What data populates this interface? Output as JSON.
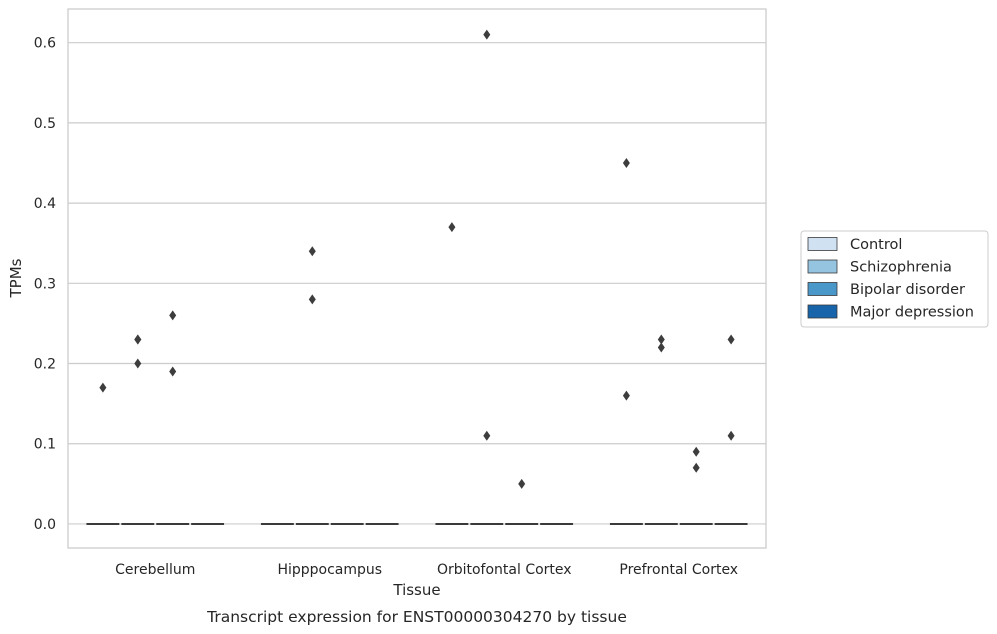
{
  "chart_data": {
    "type": "boxplot",
    "xlabel": "Tissue",
    "ylabel": "TPMs",
    "caption": "Transcript expression for ENST00000304270 by tissue",
    "categories": [
      "Cerebellum",
      "Hipppocampus",
      "Orbitofontal Cortex",
      "Prefrontal Cortex"
    ],
    "ylim": [
      -0.03,
      0.642
    ],
    "yticks": [
      "0.0",
      "0.1",
      "0.2",
      "0.3",
      "0.4",
      "0.5",
      "0.6"
    ],
    "grid": "horizontal",
    "legend_position": "right",
    "series": [
      {
        "name": "Control",
        "color": "#d0e1f2",
        "median": [
          0,
          0,
          0,
          0
        ],
        "outliers": [
          [
            0.17
          ],
          [],
          [
            0.37
          ],
          [
            0.45,
            0.16
          ]
        ]
      },
      {
        "name": "Schizophrenia",
        "color": "#94c4df",
        "median": [
          0,
          0,
          0,
          0
        ],
        "outliers": [
          [
            0.23,
            0.23,
            0.2
          ],
          [
            0.34,
            0.28
          ],
          [
            0.61,
            0.11
          ],
          [
            0.23,
            0.22
          ]
        ]
      },
      {
        "name": "Bipolar disorder",
        "color": "#4a98c9",
        "median": [
          0,
          0,
          0,
          0
        ],
        "outliers": [
          [
            0.26,
            0.19
          ],
          [],
          [
            0.05
          ],
          [
            0.09,
            0.07
          ]
        ]
      },
      {
        "name": "Major depression",
        "color": "#1764ab",
        "median": [
          0,
          0,
          0,
          0
        ],
        "outliers": [
          [],
          [],
          [],
          [
            0.23,
            0.11
          ]
        ]
      }
    ]
  }
}
